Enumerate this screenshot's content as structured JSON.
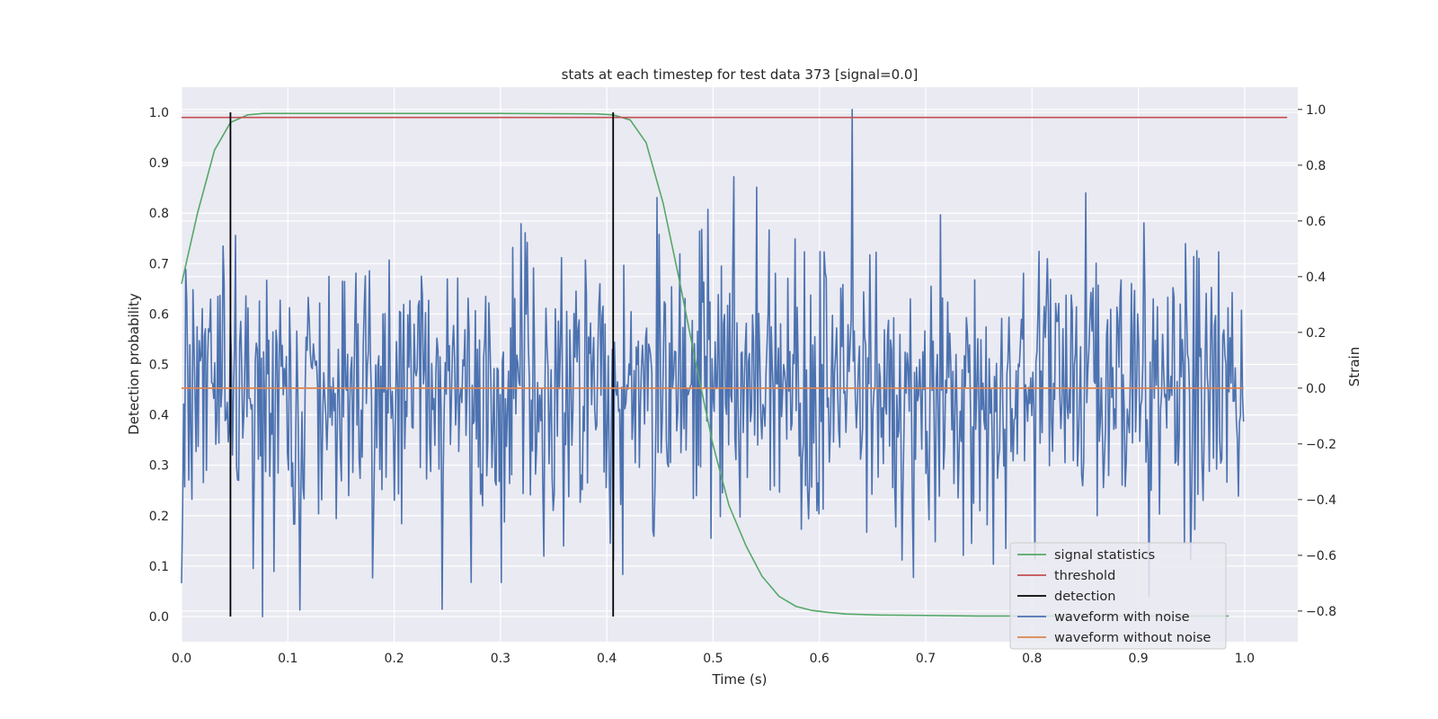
{
  "chart_data": {
    "type": "line",
    "title": "stats at each timestep for test data 373 [signal=0.0]",
    "xlabel": "Time (s)",
    "ylabel_left": "Detection probability",
    "ylabel_right": "Strain",
    "xlim": [
      0.0,
      1.05
    ],
    "ylim_left": [
      -0.05,
      1.05
    ],
    "ylim_right": [
      -0.91,
      1.08
    ],
    "x_ticks": [
      0.0,
      0.1,
      0.2,
      0.3,
      0.4,
      0.5,
      0.6,
      0.7,
      0.8,
      0.9,
      1.0
    ],
    "x_tick_labels": [
      "0.0",
      "0.1",
      "0.2",
      "0.3",
      "0.4",
      "0.5",
      "0.6",
      "0.7",
      "0.8",
      "0.9",
      "1.0"
    ],
    "y_left_ticks": [
      0.0,
      0.1,
      0.2,
      0.3,
      0.4,
      0.5,
      0.6,
      0.7,
      0.8,
      0.9,
      1.0
    ],
    "y_left_tick_labels": [
      "0.0",
      "0.1",
      "0.2",
      "0.3",
      "0.4",
      "0.5",
      "0.6",
      "0.7",
      "0.8",
      "0.9",
      "1.0"
    ],
    "y_right_ticks": [
      -0.8,
      -0.6,
      -0.4,
      -0.2,
      0.0,
      0.2,
      0.4,
      0.6,
      0.8,
      1.0
    ],
    "y_right_tick_labels": [
      "−0.8",
      "−0.6",
      "−0.4",
      "−0.2",
      "0.0",
      "0.2",
      "0.4",
      "0.6",
      "0.8",
      "1.0"
    ],
    "grid": true,
    "legend_position": "bottom-right",
    "series": [
      {
        "name": "signal statistics",
        "axis": "left",
        "color": "#55a868",
        "x": [
          0.0,
          0.015,
          0.031,
          0.046,
          0.062,
          0.077,
          0.1,
          0.2,
          0.3,
          0.39,
          0.406,
          0.422,
          0.437,
          0.453,
          0.468,
          0.484,
          0.5,
          0.515,
          0.531,
          0.546,
          0.562,
          0.578,
          0.593,
          0.609,
          0.625,
          0.656,
          0.7,
          0.75,
          0.8,
          0.85,
          0.9,
          0.95,
          0.985
        ],
        "y": [
          0.66,
          0.8,
          0.925,
          0.98,
          0.995,
          0.998,
          0.998,
          0.998,
          0.998,
          0.997,
          0.995,
          0.985,
          0.94,
          0.82,
          0.67,
          0.5,
          0.34,
          0.22,
          0.14,
          0.08,
          0.04,
          0.02,
          0.012,
          0.008,
          0.005,
          0.003,
          0.002,
          0.001,
          0.001,
          0.001,
          0.001,
          0.001,
          0.001
        ]
      },
      {
        "name": "threshold",
        "axis": "left",
        "color": "#c44e52",
        "x": [
          0.0,
          1.04
        ],
        "y": [
          0.99,
          0.99
        ]
      },
      {
        "name": "detection",
        "axis": "left",
        "color": "#000000",
        "segments": [
          {
            "x": 0.046,
            "y_from": 0.0,
            "y_to": 1.0
          },
          {
            "x": 0.406,
            "y_from": 0.0,
            "y_to": 1.0
          }
        ]
      },
      {
        "name": "waveform with noise",
        "axis": "right",
        "color": "#4c72b0",
        "n_points": 1024,
        "x_start": 0.0,
        "x_end": 0.999,
        "y_min": -0.82,
        "y_max": 1.0,
        "peak": {
          "x": 0.631,
          "y": 1.0
        },
        "trough": {
          "x": 0.076,
          "y": -0.82
        },
        "endpoints": {
          "first": -0.7,
          "last": -0.12
        }
      },
      {
        "name": "waveform without noise",
        "axis": "right",
        "color": "#dd8452",
        "x": [
          0.0,
          0.999
        ],
        "y": [
          0.0,
          0.0
        ]
      }
    ]
  }
}
